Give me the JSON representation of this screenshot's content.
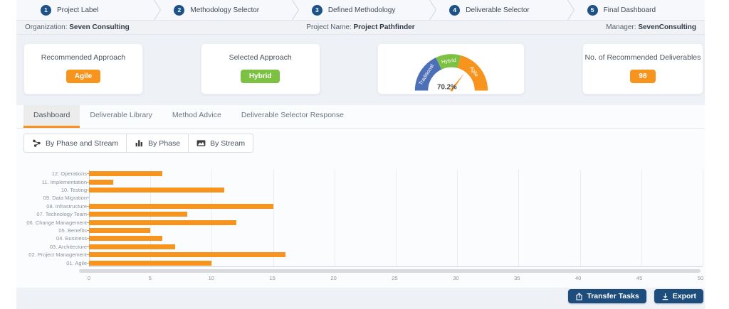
{
  "colors": {
    "accent": "#F7941E",
    "green": "#7CC142",
    "gauge_blue": "#4D6FB8",
    "step_circle": "#1D5288",
    "button_blue": "#1D4D7D"
  },
  "stepper": {
    "steps": [
      {
        "num": "1",
        "label": "Project Label"
      },
      {
        "num": "2",
        "label": "Methodology Selector"
      },
      {
        "num": "3",
        "label": "Defined Methodology"
      },
      {
        "num": "4",
        "label": "Deliverable Selector"
      },
      {
        "num": "5",
        "label": "Final Dashboard"
      }
    ]
  },
  "info_bar": {
    "organization_label": "Organization:",
    "organization_value": "Seven Consulting",
    "project_label": "Project Name:",
    "project_value": "Project Pathfinder",
    "manager_label": "Manager:",
    "manager_value": "SevenConsulting"
  },
  "cards": {
    "recommended_approach": {
      "title": "Recommended Approach",
      "value": "Agile",
      "color": "#F7941E"
    },
    "selected_approach": {
      "title": "Selected Approach",
      "value": "Hybrid",
      "color": "#7CC142"
    },
    "methodology_gauge": {
      "value": "70.2%",
      "segments": [
        {
          "label": "Traditional",
          "color": "#4D6FB8"
        },
        {
          "label": "Hybrid",
          "color": "#7CC142"
        },
        {
          "label": "Agile",
          "color": "#F7941E"
        }
      ]
    },
    "deliverables": {
      "title": "No. of Recommended Deliverables",
      "value": "98",
      "color": "#F7941E"
    }
  },
  "tabs": [
    {
      "label": "Dashboard",
      "active": true
    },
    {
      "label": "Deliverable Library"
    },
    {
      "label": "Method Advice"
    },
    {
      "label": "Deliverable Selector Response"
    }
  ],
  "view_toggles": [
    {
      "label": "By Phase and Stream"
    },
    {
      "label": "By Phase"
    },
    {
      "label": "By Stream",
      "active": true
    }
  ],
  "chart_data": {
    "type": "bar",
    "orientation": "horizontal",
    "categories": [
      "12. Operations",
      "11. Implementation",
      "10. Testing",
      "09. Data Migration",
      "08. Infrastructure",
      "07. Technology Team",
      "06. Change Management",
      "05. Benefits",
      "04. Business",
      "03. Architecture",
      "02. Project Management",
      "01. Agile"
    ],
    "values": [
      6,
      2,
      11,
      0,
      15,
      8,
      12,
      5,
      6,
      7,
      16,
      10
    ],
    "xlim": [
      0,
      50
    ],
    "xticks": [
      0,
      5,
      10,
      15,
      20,
      25,
      30,
      35,
      40,
      45,
      50
    ],
    "bar_color": "#F7941E",
    "grid": true,
    "legend": false
  },
  "footer": {
    "transfer_button": "Transfer Tasks",
    "export_button": "Export"
  }
}
